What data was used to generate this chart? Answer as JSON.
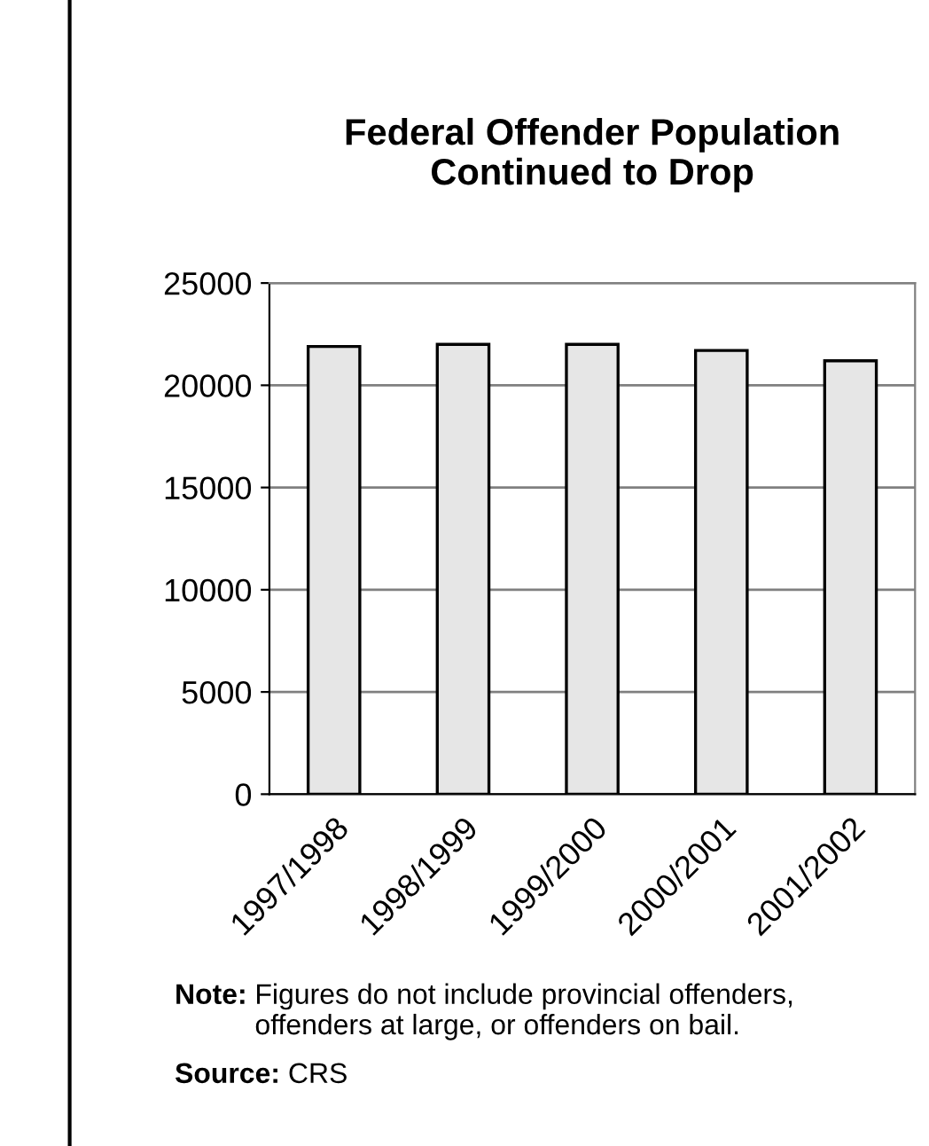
{
  "chart_data": {
    "type": "bar",
    "title": "Federal Offender Population\nContinued to Drop",
    "categories": [
      "1997/1998",
      "1998/1999",
      "1999/2000",
      "2000/2001",
      "2001/2002"
    ],
    "values": [
      21900,
      22000,
      22000,
      21700,
      21200
    ],
    "color": "#e6e6e6",
    "ylim": [
      0,
      25000
    ],
    "yticks": [
      0,
      5000,
      10000,
      15000,
      20000,
      25000
    ],
    "grid": "y",
    "annotations": [
      "Note: Figures do not include provincial offenders, offenders at large, or offenders on bail.",
      "Source: CRS"
    ]
  }
}
